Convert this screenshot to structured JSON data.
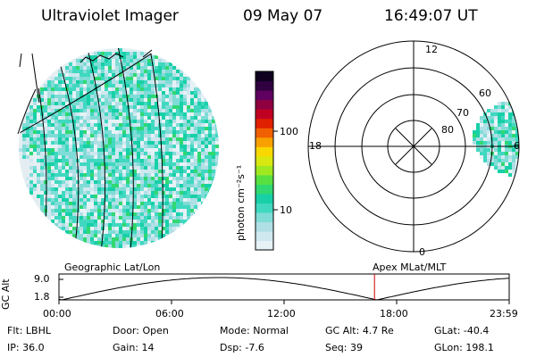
{
  "header": {
    "instrument": "Ultraviolet Imager",
    "date": "09 May 07",
    "time": "16:49:07 UT"
  },
  "left_panel": {
    "caption": "Geographic Lat/Lon"
  },
  "colorbar": {
    "unit_label": "photon cm⁻²s⁻¹",
    "ticks": [
      "100",
      "10"
    ],
    "colors": [
      "#e6f2f6",
      "#cfe8f0",
      "#b0dfe6",
      "#7fdcd6",
      "#40d8c0",
      "#18d0a8",
      "#30d870",
      "#58e040",
      "#a0e820",
      "#d8e810",
      "#f8d800",
      "#f8a000",
      "#f06000",
      "#e02000",
      "#c00020",
      "#900040",
      "#600060",
      "#300040",
      "#100020"
    ]
  },
  "right_panel": {
    "caption": "Apex MLat/MLT",
    "mlt_labels": [
      "12",
      "18",
      "6",
      "0"
    ],
    "mlat_labels": [
      "80",
      "70",
      "60"
    ]
  },
  "timeline": {
    "ylabel": "GC Alt",
    "y_ticks": [
      "9.0",
      "1.8"
    ],
    "x_ticks": [
      "00:00",
      "06:00",
      "12:00",
      "18:00",
      "23:59"
    ],
    "current_marker_hours": 16.82,
    "colors": {
      "curve": "#000000",
      "marker": "#cc0000"
    }
  },
  "info": {
    "row1": [
      {
        "label": "Flt:",
        "value": "LBHL"
      },
      {
        "label": "Door:",
        "value": "Open"
      },
      {
        "label": "Mode:",
        "value": "Normal"
      },
      {
        "label": "GC Alt:",
        "value": "4.7 Re"
      },
      {
        "label": "GLat:",
        "value": "-40.4"
      }
    ],
    "row2": [
      {
        "label": "IP:",
        "value": "36.0"
      },
      {
        "label": "Gain:",
        "value": "14"
      },
      {
        "label": "Dsp:",
        "value": "-7.6"
      },
      {
        "label": "Seq:",
        "value": "39"
      },
      {
        "label": "GLon:",
        "value": "198.1"
      }
    ]
  }
}
